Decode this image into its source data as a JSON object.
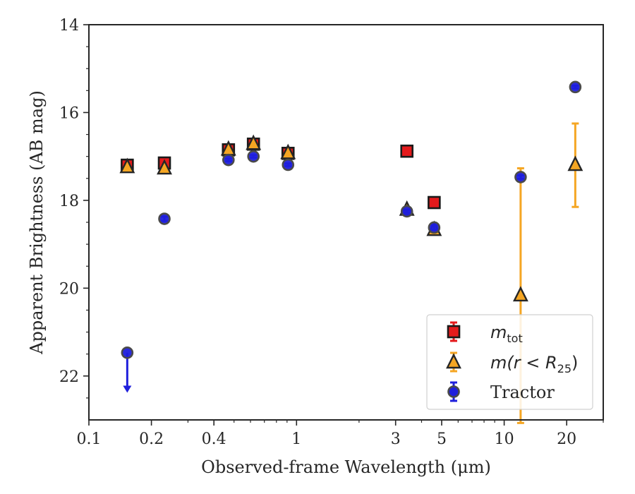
{
  "chart_data": {
    "type": "scatter",
    "title": "",
    "xlabel": "Observed-frame Wavelength (μm)",
    "ylabel": "Apparent Brightness (AB mag)",
    "xscale": "log",
    "xlim": [
      0.1,
      30
    ],
    "ylim": [
      23,
      14
    ],
    "y_inverted": true,
    "xticks": [
      0.1,
      0.2,
      0.4,
      1,
      3,
      5,
      10,
      20
    ],
    "xtick_labels": [
      "0.1",
      "0.2",
      "0.4",
      "1",
      "3",
      "5",
      "10",
      "20"
    ],
    "yticks": [
      14,
      16,
      18,
      20,
      22
    ],
    "ytick_labels": [
      "14",
      "16",
      "18",
      "20",
      "22"
    ],
    "grid": false,
    "legend_position": "lower right",
    "series": [
      {
        "name": "m_tot",
        "legend_label": "m",
        "legend_subscript": "tot",
        "marker": "square",
        "color": "#e41a1c",
        "errcolor": "#e41a1c",
        "points": [
          {
            "x": 0.153,
            "y": 17.2,
            "err": 0.08
          },
          {
            "x": 0.231,
            "y": 17.15,
            "err": 0.08
          },
          {
            "x": 0.47,
            "y": 16.85,
            "err": 0.05
          },
          {
            "x": 0.62,
            "y": 16.72,
            "err": 0.05
          },
          {
            "x": 0.91,
            "y": 16.93,
            "err": 0.05
          },
          {
            "x": 3.4,
            "y": 16.88,
            "err": 0.04
          },
          {
            "x": 4.6,
            "y": 18.05,
            "err": 0.05
          }
        ]
      },
      {
        "name": "m(r < R25)",
        "legend_label": "m(r < R",
        "legend_subscript": "25",
        "legend_suffix": ")",
        "marker": "triangle",
        "color": "#f5a623",
        "errcolor": "#f5a623",
        "points": [
          {
            "x": 0.153,
            "y": 17.25,
            "err": 0.05
          },
          {
            "x": 0.231,
            "y": 17.28,
            "err": 0.05
          },
          {
            "x": 0.47,
            "y": 16.85,
            "err": 0.04
          },
          {
            "x": 0.62,
            "y": 16.72,
            "err": 0.04
          },
          {
            "x": 0.91,
            "y": 16.93,
            "err": 0.04
          },
          {
            "x": 3.4,
            "y": 18.22,
            "err": 0.05
          },
          {
            "x": 4.6,
            "y": 18.68,
            "err": 0.06
          },
          {
            "x": 12.0,
            "y": 20.17,
            "err": 2.9
          },
          {
            "x": 22.0,
            "y": 17.2,
            "err": 0.95
          }
        ]
      },
      {
        "name": "Tractor",
        "legend_label": "Tractor",
        "marker": "circle",
        "color": "#1f1fdc",
        "errcolor": "#1f1fdc",
        "points": [
          {
            "x": 0.153,
            "y": 21.47,
            "err": 0,
            "upper_limit": true,
            "arrow_to": 22.35
          },
          {
            "x": 0.231,
            "y": 18.42,
            "err": 0.05
          },
          {
            "x": 0.47,
            "y": 17.08,
            "err": 0.03
          },
          {
            "x": 0.62,
            "y": 17.0,
            "err": 0.03
          },
          {
            "x": 0.91,
            "y": 17.19,
            "err": 0.03
          },
          {
            "x": 3.4,
            "y": 18.25,
            "err": 0.03
          },
          {
            "x": 4.6,
            "y": 18.62,
            "err": 0.05
          },
          {
            "x": 12.0,
            "y": 17.47,
            "err": 0.04
          },
          {
            "x": 22.0,
            "y": 15.42,
            "err": 0.03
          }
        ]
      }
    ]
  }
}
